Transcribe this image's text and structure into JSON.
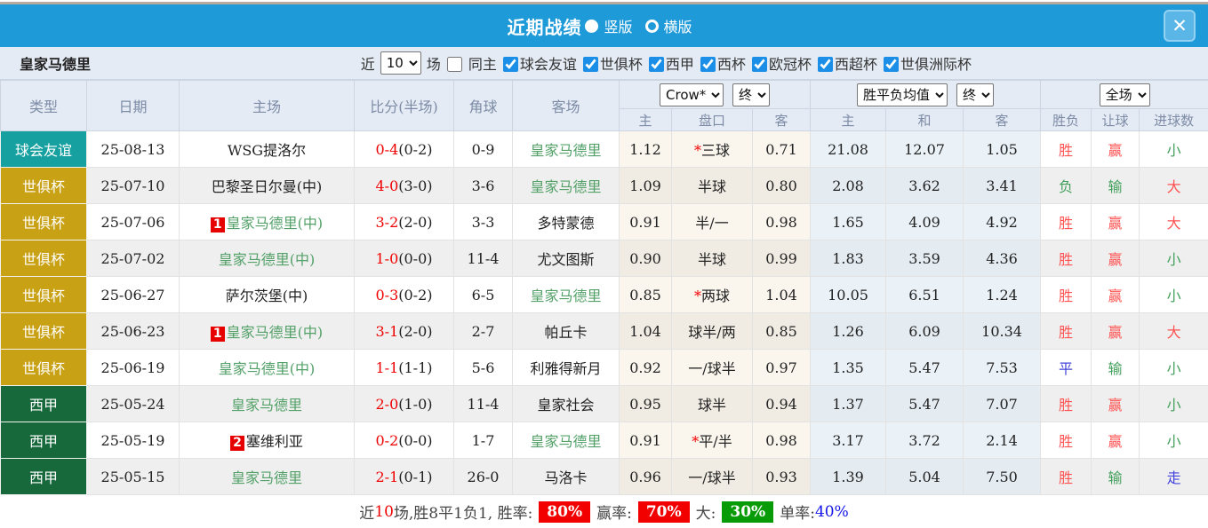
{
  "header": {
    "title": "近期战绩",
    "radio_vertical_label": "竖版",
    "radio_horizontal_label": "横版",
    "close_label": "✕"
  },
  "toolbar": {
    "team": "皇家马德里",
    "near_label": "近",
    "near_value": "10",
    "matches_label": "场",
    "same_home_label": "同主",
    "filters": [
      "球会友谊",
      "世俱杯",
      "西甲",
      "西杯",
      "欧冠杯",
      "西超杯",
      "世俱洲际杯"
    ]
  },
  "table": {
    "static_headers": [
      "类型",
      "日期",
      "主场",
      "比分(半场)",
      "角球",
      "客场"
    ],
    "odds_company_select": "Crow*",
    "odds_time_select": "终",
    "odds_cols": [
      "主",
      "盘口",
      "客"
    ],
    "avg_select": "胜平负均值",
    "avg_time_select": "终",
    "avg_cols": [
      "主",
      "和",
      "客"
    ],
    "scope_select": "全场",
    "result_cols": [
      "胜负",
      "让球",
      "进球数"
    ],
    "type_colors": {
      "球会友谊": "#16a0a0",
      "世俱杯": "#c9a115",
      "西甲": "#17693c"
    },
    "rows": [
      {
        "type": "球会友谊",
        "date": "25-08-13",
        "home": "WSG提洛尔",
        "home_green": false,
        "home_badge": "",
        "score": "0-4",
        "half": "(0-2)",
        "corner": "0-9",
        "away": "皇家马德里",
        "away_green": true,
        "odds_home": "1.12",
        "star": true,
        "handicap": "三球",
        "odds_away": "0.71",
        "avg": [
          "21.08",
          "12.07",
          "1.05"
        ],
        "wdl": "胜",
        "wdl_c": "c-red",
        "hc": "赢",
        "hc_c": "c-red",
        "goal": "小",
        "goal_c": "c-green"
      },
      {
        "type": "世俱杯",
        "date": "25-07-10",
        "home": "巴黎圣日尔曼(中)",
        "home_green": false,
        "home_badge": "",
        "score": "4-0",
        "half": "(3-0)",
        "corner": "3-6",
        "away": "皇家马德里",
        "away_green": true,
        "odds_home": "1.09",
        "star": false,
        "handicap": "半球",
        "odds_away": "0.80",
        "avg": [
          "2.08",
          "3.62",
          "3.41"
        ],
        "wdl": "负",
        "wdl_c": "c-green",
        "hc": "输",
        "hc_c": "c-green",
        "goal": "大",
        "goal_c": "c-red"
      },
      {
        "type": "世俱杯",
        "date": "25-07-06",
        "home": "皇家马德里(中)",
        "home_green": true,
        "home_badge": "1",
        "score": "3-2",
        "half": "(2-0)",
        "corner": "3-3",
        "away": "多特蒙德",
        "away_green": false,
        "odds_home": "0.91",
        "star": false,
        "handicap": "半/一",
        "odds_away": "0.98",
        "avg": [
          "1.65",
          "4.09",
          "4.92"
        ],
        "wdl": "胜",
        "wdl_c": "c-red",
        "hc": "赢",
        "hc_c": "c-red",
        "goal": "大",
        "goal_c": "c-red"
      },
      {
        "type": "世俱杯",
        "date": "25-07-02",
        "home": "皇家马德里(中)",
        "home_green": true,
        "home_badge": "",
        "score": "1-0",
        "half": "(0-0)",
        "corner": "11-4",
        "away": "尤文图斯",
        "away_green": false,
        "odds_home": "0.90",
        "star": false,
        "handicap": "半球",
        "odds_away": "0.99",
        "avg": [
          "1.83",
          "3.59",
          "4.36"
        ],
        "wdl": "胜",
        "wdl_c": "c-red",
        "hc": "赢",
        "hc_c": "c-red",
        "goal": "小",
        "goal_c": "c-green"
      },
      {
        "type": "世俱杯",
        "date": "25-06-27",
        "home": "萨尔茨堡(中)",
        "home_green": false,
        "home_badge": "",
        "score": "0-3",
        "half": "(0-2)",
        "corner": "6-5",
        "away": "皇家马德里",
        "away_green": true,
        "odds_home": "0.85",
        "star": true,
        "handicap": "两球",
        "odds_away": "1.04",
        "avg": [
          "10.05",
          "6.51",
          "1.24"
        ],
        "wdl": "胜",
        "wdl_c": "c-red",
        "hc": "赢",
        "hc_c": "c-red",
        "goal": "小",
        "goal_c": "c-green"
      },
      {
        "type": "世俱杯",
        "date": "25-06-23",
        "home": "皇家马德里(中)",
        "home_green": true,
        "home_badge": "1",
        "score": "3-1",
        "half": "(2-0)",
        "corner": "2-7",
        "away": "帕丘卡",
        "away_green": false,
        "odds_home": "1.04",
        "star": false,
        "handicap": "球半/两",
        "odds_away": "0.85",
        "avg": [
          "1.26",
          "6.09",
          "10.34"
        ],
        "wdl": "胜",
        "wdl_c": "c-red",
        "hc": "赢",
        "hc_c": "c-red",
        "goal": "大",
        "goal_c": "c-red"
      },
      {
        "type": "世俱杯",
        "date": "25-06-19",
        "home": "皇家马德里(中)",
        "home_green": true,
        "home_badge": "",
        "score": "1-1",
        "half": "(1-1)",
        "corner": "5-6",
        "away": "利雅得新月",
        "away_green": false,
        "odds_home": "0.92",
        "star": false,
        "handicap": "一/球半",
        "odds_away": "0.97",
        "avg": [
          "1.35",
          "5.47",
          "7.53"
        ],
        "wdl": "平",
        "wdl_c": "c-blue",
        "hc": "输",
        "hc_c": "c-green",
        "goal": "小",
        "goal_c": "c-green"
      },
      {
        "type": "西甲",
        "date": "25-05-24",
        "home": "皇家马德里",
        "home_green": true,
        "home_badge": "",
        "score": "2-0",
        "half": "(1-0)",
        "corner": "11-4",
        "away": "皇家社会",
        "away_green": false,
        "odds_home": "0.95",
        "star": false,
        "handicap": "球半",
        "odds_away": "0.94",
        "avg": [
          "1.37",
          "5.47",
          "7.07"
        ],
        "wdl": "胜",
        "wdl_c": "c-red",
        "hc": "赢",
        "hc_c": "c-red",
        "goal": "小",
        "goal_c": "c-green"
      },
      {
        "type": "西甲",
        "date": "25-05-19",
        "home": "塞维利亚",
        "home_green": false,
        "home_badge": "2",
        "score": "0-2",
        "half": "(0-0)",
        "corner": "1-7",
        "away": "皇家马德里",
        "away_green": true,
        "odds_home": "0.91",
        "star": true,
        "handicap": "平/半",
        "odds_away": "0.98",
        "avg": [
          "3.17",
          "3.72",
          "2.14"
        ],
        "wdl": "胜",
        "wdl_c": "c-red",
        "hc": "赢",
        "hc_c": "c-red",
        "goal": "小",
        "goal_c": "c-green"
      },
      {
        "type": "西甲",
        "date": "25-05-15",
        "home": "皇家马德里",
        "home_green": true,
        "home_badge": "",
        "score": "2-1",
        "half": "(0-1)",
        "corner": "26-0",
        "away": "马洛卡",
        "away_green": false,
        "odds_home": "0.96",
        "star": false,
        "handicap": "一/球半",
        "odds_away": "0.93",
        "avg": [
          "1.39",
          "5.04",
          "7.50"
        ],
        "wdl": "胜",
        "wdl_c": "c-red",
        "hc": "输",
        "hc_c": "c-green",
        "goal": "走",
        "goal_c": "c-blue"
      }
    ]
  },
  "summary": {
    "segments": [
      {
        "t": "text",
        "v": "近"
      },
      {
        "t": "red-text",
        "v": "10"
      },
      {
        "t": "text",
        "v": "场,胜8平1负1, 胜率:"
      },
      {
        "t": "red-badge",
        "v": "80%"
      },
      {
        "t": "text",
        "v": "赢率:"
      },
      {
        "t": "red-badge",
        "v": "70%"
      },
      {
        "t": "text",
        "v": "大:"
      },
      {
        "t": "green-badge",
        "v": "30%"
      },
      {
        "t": "text",
        "v": "单率:"
      },
      {
        "t": "blue-text",
        "v": "40%"
      }
    ]
  },
  "colors": {
    "titlebar_blue": "#1e9ad8",
    "header_bg": "#e4ebf4",
    "type_teal": "#16a0a0",
    "type_gold": "#c9a115",
    "type_green": "#17693c",
    "score_red": "#f00000",
    "team_green": "#54a169",
    "result_red": "#ff5252",
    "result_green": "#44a05c",
    "result_blue": "#4343dd"
  }
}
